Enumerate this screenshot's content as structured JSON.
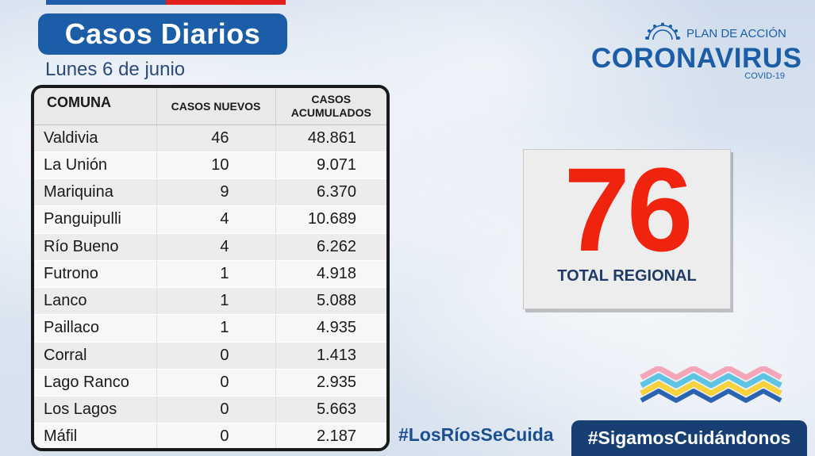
{
  "header": {
    "title": "Casos Diarios",
    "date": "Lunes 6 de junio"
  },
  "table": {
    "col_comuna": "COMUNA",
    "col_nuevos": "CASOS NUEVOS",
    "col_acumulados_1": "CASOS",
    "col_acumulados_2": "ACUMULADOS",
    "rows": [
      {
        "comuna": "Valdivia",
        "nuevos": "46",
        "acumulados": "48.861"
      },
      {
        "comuna": "La Unión",
        "nuevos": "10",
        "acumulados": "9.071"
      },
      {
        "comuna": "Mariquina",
        "nuevos": "9",
        "acumulados": "6.370"
      },
      {
        "comuna": "Panguipulli",
        "nuevos": "4",
        "acumulados": "10.689"
      },
      {
        "comuna": "Río Bueno",
        "nuevos": "4",
        "acumulados": "6.262"
      },
      {
        "comuna": "Futrono",
        "nuevos": "1",
        "acumulados": "4.918"
      },
      {
        "comuna": "Lanco",
        "nuevos": "1",
        "acumulados": "5.088"
      },
      {
        "comuna": "Paillaco",
        "nuevos": "1",
        "acumulados": "4.935"
      },
      {
        "comuna": "Corral",
        "nuevos": "0",
        "acumulados": "1.413"
      },
      {
        "comuna": "Lago Ranco",
        "nuevos": "0",
        "acumulados": "2.935"
      },
      {
        "comuna": "Los Lagos",
        "nuevos": "0",
        "acumulados": "5.663"
      },
      {
        "comuna": "Máfil",
        "nuevos": "0",
        "acumulados": "2.187"
      }
    ]
  },
  "logo": {
    "plan": "PLAN DE ACCIÓN",
    "name": "CORONAVIRUS",
    "sub": "COVID-19",
    "icon": "virus-icon",
    "color": "#1b5ea7"
  },
  "total": {
    "value": "76",
    "label": "TOTAL REGIONAL",
    "color": "#f0230f"
  },
  "footer": {
    "hashtag_region": "#LosRíosSeCuida",
    "hashtag_main": "#SigamosCuidándonos"
  },
  "colors": {
    "brand_blue": "#1b5ea7",
    "dark_blue": "#173f74",
    "red": "#e2211c"
  }
}
